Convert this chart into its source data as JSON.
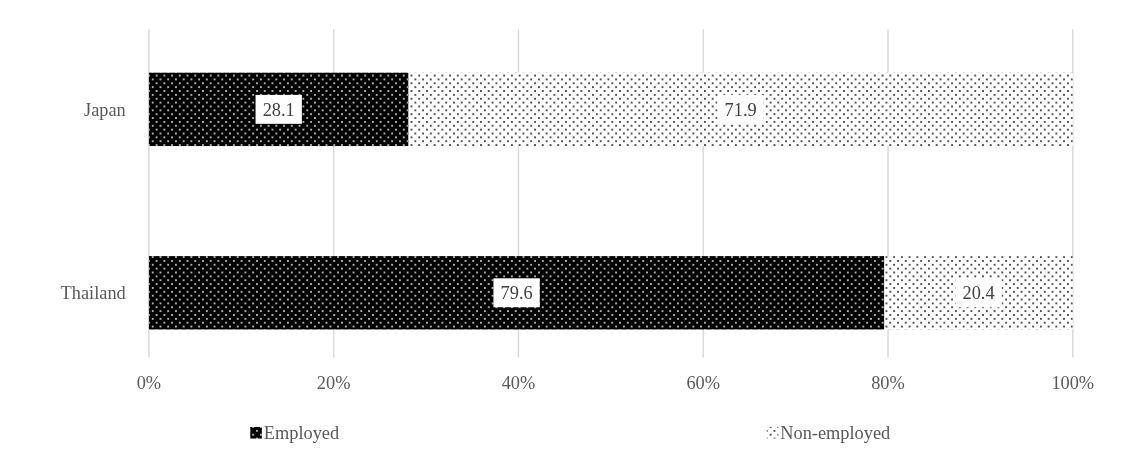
{
  "chart_data": {
    "type": "bar",
    "orientation": "horizontal",
    "stacked": true,
    "categories": [
      "Japan",
      "Thailand"
    ],
    "series": [
      {
        "name": "Employed",
        "color": "#000000",
        "values": [
          28.1,
          79.6
        ]
      },
      {
        "name": "Non-employed",
        "color": "#ffffff",
        "values": [
          71.9,
          20.4
        ]
      }
    ],
    "xlim": [
      0,
      100
    ],
    "xticks": [
      {
        "value": 0,
        "label": "0%"
      },
      {
        "value": 20,
        "label": "20%"
      },
      {
        "value": 40,
        "label": "40%"
      },
      {
        "value": 60,
        "label": "60%"
      },
      {
        "value": 80,
        "label": "80%"
      },
      {
        "value": 100,
        "label": "100%"
      }
    ],
    "grid": "x",
    "legend": "bottom",
    "data_labels": true
  }
}
